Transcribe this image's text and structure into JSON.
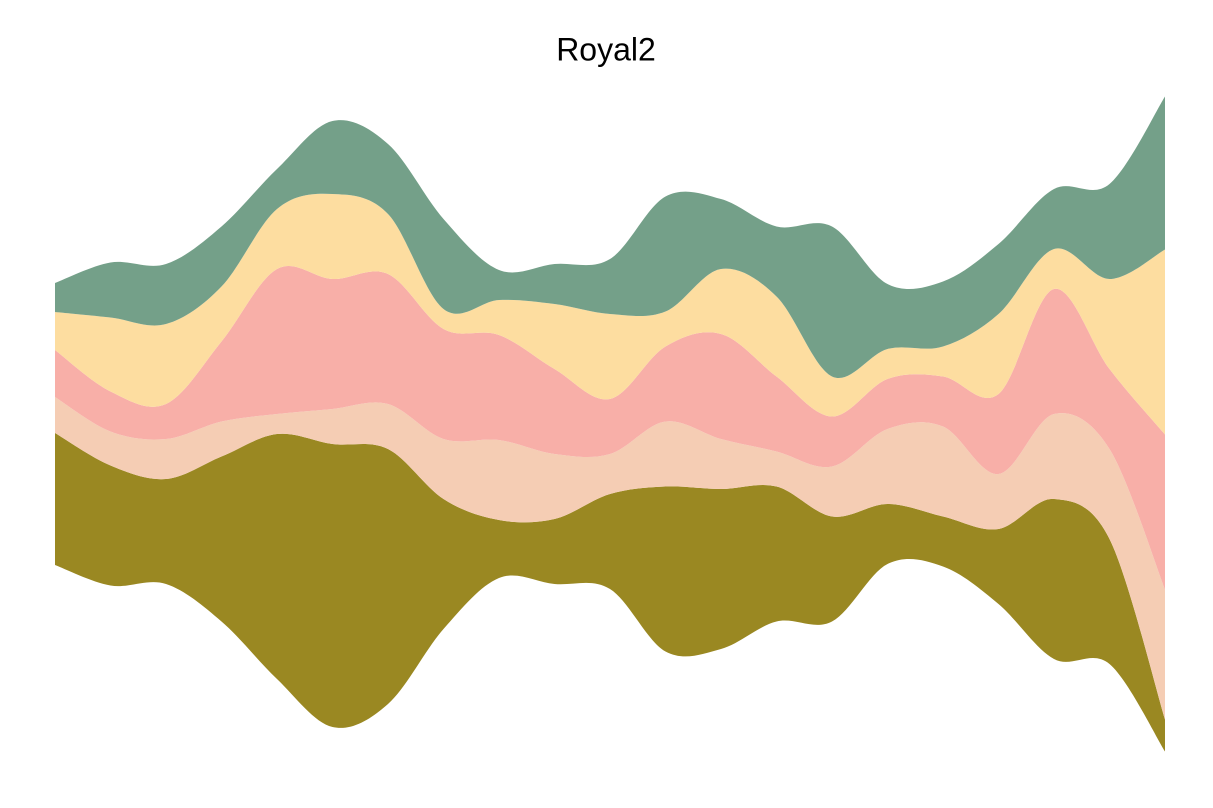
{
  "chart_data": {
    "type": "streamgraph",
    "title": "Royal2",
    "x": [
      1,
      2,
      3,
      4,
      5,
      6,
      7,
      8,
      9,
      10,
      11,
      12,
      13,
      14,
      15,
      16,
      17,
      18,
      19,
      20,
      21
    ],
    "xlim": [
      1,
      21
    ],
    "ylim": [
      -35,
      35
    ],
    "offset": "silhouette",
    "series": [
      {
        "color": "#9A8822",
        "values": [
          13.2,
          12.0,
          10.5,
          16.5,
          24.5,
          28.3,
          25.5,
          13.0,
          5.8,
          6.5,
          9.5,
          16.5,
          16.0,
          13.5,
          10.5,
          6.0,
          5.0,
          7.5,
          16.0,
          12.5,
          3.2
        ]
      },
      {
        "color": "#F5CDB4",
        "values": [
          3.6,
          3.4,
          4.0,
          3.5,
          2.0,
          3.5,
          4.5,
          6.0,
          8.0,
          6.5,
          4.0,
          6.5,
          5.0,
          3.5,
          5.0,
          7.5,
          9.0,
          5.5,
          8.5,
          9.0,
          13.0
        ]
      },
      {
        "color": "#F8AFA8",
        "values": [
          4.7,
          4.0,
          3.5,
          8.0,
          14.5,
          13.0,
          13.0,
          11.0,
          10.5,
          8.5,
          5.5,
          7.5,
          10.5,
          7.5,
          5.0,
          5.0,
          5.0,
          8.0,
          12.5,
          8.0,
          15.5
        ]
      },
      {
        "color": "#FDDDA0",
        "values": [
          3.8,
          7.4,
          8.0,
          5.5,
          6.0,
          8.5,
          6.0,
          2.0,
          3.5,
          6.5,
          8.5,
          3.5,
          6.5,
          8.0,
          4.0,
          3.0,
          3.0,
          8.0,
          4.0,
          9.0,
          18.5
        ]
      },
      {
        "color": "#74A089",
        "values": [
          2.9,
          5.5,
          6.0,
          6.0,
          4.0,
          7.3,
          7.0,
          9.0,
          3.0,
          4.0,
          5.5,
          11.5,
          7.0,
          7.0,
          15.0,
          6.5,
          6.5,
          7.0,
          6.0,
          9.5,
          15.3
        ]
      }
    ]
  }
}
